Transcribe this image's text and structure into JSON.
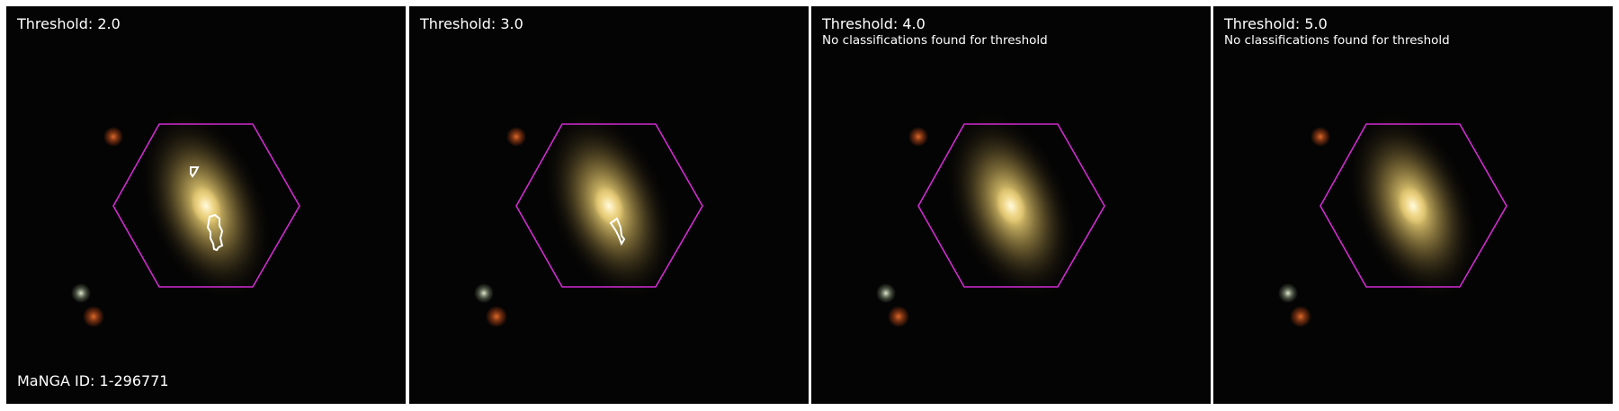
{
  "panels": [
    {
      "title": "Threshold: 2.0",
      "note": "",
      "has_contours": true
    },
    {
      "title": "Threshold: 3.0",
      "note": "",
      "has_contours": true
    },
    {
      "title": "Threshold: 4.0",
      "note": "No classifications found for threshold",
      "has_contours": false
    },
    {
      "title": "Threshold: 5.0",
      "note": "No classifications found for threshold",
      "has_contours": false
    }
  ],
  "manga_id": "MaNGA ID: 1-296771",
  "colors": {
    "background": "#040404",
    "hexagon": "#d22ad2",
    "contour": "#ffffff",
    "galaxy_core": "#fff3b0",
    "galaxy_halo": "#8c7a44",
    "foreground_star_red": "#c0501e",
    "foreground_star_white": "#c8d2b4",
    "divider": "#ffffff"
  }
}
